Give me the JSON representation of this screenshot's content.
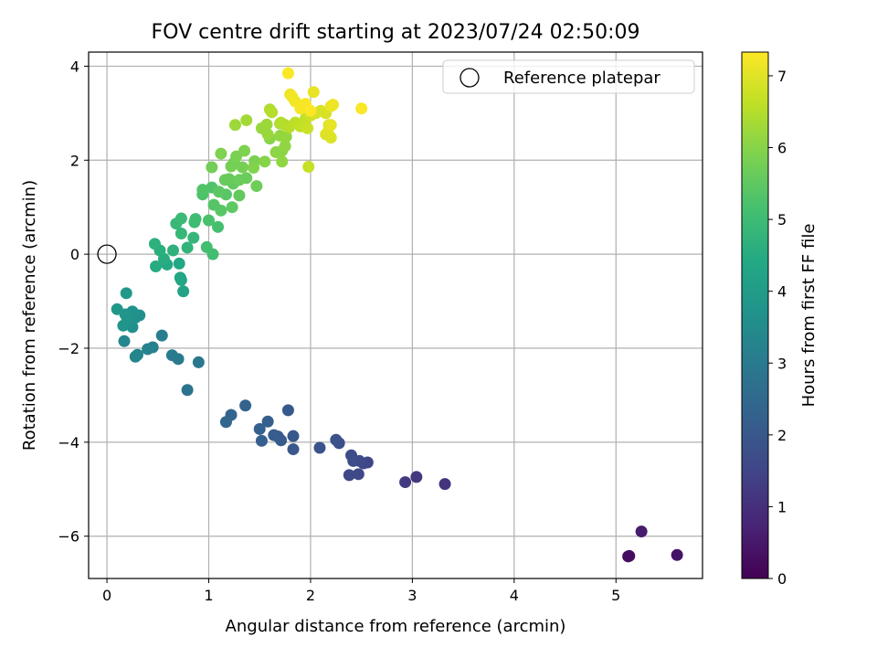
{
  "chart_data": {
    "type": "scatter",
    "title": "FOV centre drift starting at 2023/07/24 02:50:09",
    "xlabel": "Angular distance from reference (arcmin)",
    "ylabel": "Rotation from reference (arcmin)",
    "xlim": [
      -0.18,
      5.85
    ],
    "ylim": [
      -6.9,
      4.3
    ],
    "xticks": [
      0,
      1,
      2,
      3,
      4,
      5
    ],
    "yticks": [
      -6,
      -4,
      -2,
      0,
      2,
      4
    ],
    "grid": true,
    "legend": {
      "placement": "top-right",
      "entries": [
        "Reference platepar"
      ]
    },
    "reference_point": {
      "x": 0,
      "y": 0,
      "label": "Reference platepar"
    },
    "colorbar": {
      "label": "Hours from first FF file",
      "colormap": "viridis",
      "range": [
        0,
        7.33
      ],
      "ticks": [
        0,
        1,
        2,
        3,
        4,
        5,
        6,
        7
      ]
    },
    "series": [
      {
        "points": [
          [
            5.13,
            -6.42,
            0.2
          ],
          [
            5.12,
            -6.43,
            0.25
          ],
          [
            5.6,
            -6.4,
            0.4
          ],
          [
            5.25,
            -5.9,
            0.55
          ],
          [
            3.32,
            -4.89,
            1.1
          ],
          [
            3.04,
            -4.74,
            1.2
          ],
          [
            2.93,
            -4.85,
            1.25
          ],
          [
            2.56,
            -4.43,
            1.5
          ],
          [
            2.52,
            -4.45,
            1.55
          ],
          [
            2.47,
            -4.68,
            1.6
          ],
          [
            2.38,
            -4.7,
            1.6
          ],
          [
            2.48,
            -4.4,
            1.65
          ],
          [
            2.42,
            -4.4,
            1.7
          ],
          [
            2.4,
            -4.28,
            1.7
          ],
          [
            2.28,
            -4.02,
            1.8
          ],
          [
            2.25,
            -3.95,
            1.85
          ],
          [
            2.09,
            -4.12,
            1.9
          ],
          [
            1.83,
            -4.15,
            2.0
          ],
          [
            1.83,
            -3.87,
            2.0
          ],
          [
            1.78,
            -3.32,
            2.05
          ],
          [
            1.71,
            -3.96,
            2.1
          ],
          [
            1.68,
            -3.88,
            2.1
          ],
          [
            1.64,
            -3.85,
            2.15
          ],
          [
            1.58,
            -3.56,
            2.2
          ],
          [
            1.52,
            -3.97,
            2.2
          ],
          [
            1.5,
            -3.72,
            2.25
          ],
          [
            1.36,
            -3.22,
            2.3
          ],
          [
            1.22,
            -3.42,
            2.35
          ],
          [
            1.17,
            -3.57,
            2.4
          ],
          [
            0.79,
            -2.89,
            2.8
          ],
          [
            0.9,
            -2.3,
            2.9
          ],
          [
            0.7,
            -2.23,
            3.0
          ],
          [
            0.64,
            -2.15,
            3.05
          ],
          [
            0.54,
            -1.73,
            3.1
          ],
          [
            0.45,
            -1.98,
            3.2
          ],
          [
            0.4,
            -2.02,
            3.25
          ],
          [
            0.3,
            -2.14,
            3.3
          ],
          [
            0.28,
            -2.18,
            3.3
          ],
          [
            0.17,
            -1.85,
            3.35
          ],
          [
            0.32,
            -1.3,
            3.6
          ],
          [
            0.28,
            -1.35,
            3.6
          ],
          [
            0.25,
            -1.55,
            3.65
          ],
          [
            0.25,
            -1.22,
            3.7
          ],
          [
            0.22,
            -1.3,
            3.7
          ],
          [
            0.2,
            -1.38,
            3.75
          ],
          [
            0.18,
            -1.28,
            3.75
          ],
          [
            0.16,
            -1.52,
            3.8
          ],
          [
            0.1,
            -1.17,
            3.85
          ],
          [
            0.19,
            -0.83,
            3.9
          ],
          [
            0.75,
            -0.79,
            4.25
          ],
          [
            0.73,
            -0.55,
            4.3
          ],
          [
            0.72,
            -0.5,
            4.35
          ],
          [
            0.71,
            -0.2,
            4.4
          ],
          [
            0.59,
            -0.22,
            4.45
          ],
          [
            0.48,
            -0.26,
            4.5
          ],
          [
            0.56,
            -0.1,
            4.55
          ],
          [
            0.52,
            0.08,
            4.6
          ],
          [
            0.47,
            0.22,
            4.65
          ],
          [
            0.65,
            0.08,
            4.7
          ],
          [
            0.79,
            0.14,
            4.75
          ],
          [
            0.85,
            0.35,
            4.8
          ],
          [
            0.73,
            0.44,
            4.85
          ],
          [
            0.68,
            0.65,
            4.9
          ],
          [
            0.73,
            0.76,
            4.95
          ],
          [
            0.86,
            0.68,
            5.0
          ],
          [
            0.87,
            0.75,
            5.05
          ],
          [
            0.98,
            0.15,
            5.1
          ],
          [
            1.04,
            0.0,
            5.1
          ],
          [
            1.09,
            0.58,
            5.15
          ],
          [
            1.0,
            0.72,
            5.2
          ],
          [
            0.94,
            1.27,
            5.25
          ],
          [
            0.94,
            1.37,
            5.3
          ],
          [
            1.03,
            1.42,
            5.3
          ],
          [
            1.05,
            1.05,
            5.35
          ],
          [
            1.12,
            0.93,
            5.4
          ],
          [
            1.17,
            1.27,
            5.4
          ],
          [
            1.1,
            1.33,
            5.45
          ],
          [
            1.23,
            1.0,
            5.5
          ],
          [
            1.3,
            1.25,
            5.55
          ],
          [
            1.24,
            1.5,
            5.55
          ],
          [
            1.16,
            1.58,
            5.6
          ],
          [
            1.2,
            1.6,
            5.6
          ],
          [
            1.3,
            1.58,
            5.65
          ],
          [
            1.37,
            1.62,
            5.65
          ],
          [
            1.47,
            1.45,
            5.7
          ],
          [
            1.03,
            1.85,
            5.75
          ],
          [
            1.25,
            1.95,
            5.75
          ],
          [
            1.22,
            1.87,
            5.8
          ],
          [
            1.33,
            1.85,
            5.8
          ],
          [
            1.45,
            1.98,
            5.85
          ],
          [
            1.27,
            2.08,
            5.85
          ],
          [
            1.12,
            2.14,
            5.9
          ],
          [
            1.35,
            2.2,
            5.9
          ],
          [
            1.44,
            1.84,
            5.95
          ],
          [
            1.55,
            1.97,
            6.0
          ],
          [
            1.6,
            2.46,
            6.0
          ],
          [
            1.66,
            2.17,
            6.05
          ],
          [
            1.72,
            2.2,
            6.05
          ],
          [
            1.75,
            2.3,
            6.1
          ],
          [
            1.72,
            1.97,
            6.1
          ],
          [
            1.76,
            2.5,
            6.15
          ],
          [
            1.7,
            2.52,
            6.15
          ],
          [
            1.58,
            2.55,
            6.2
          ],
          [
            1.52,
            2.68,
            6.2
          ],
          [
            1.57,
            2.76,
            6.25
          ],
          [
            1.26,
            2.75,
            6.25
          ],
          [
            1.37,
            2.85,
            6.3
          ],
          [
            1.7,
            2.78,
            6.35
          ],
          [
            1.75,
            2.75,
            6.4
          ],
          [
            1.6,
            3.08,
            6.45
          ],
          [
            1.62,
            3.02,
            6.5
          ],
          [
            1.71,
            2.8,
            6.5
          ],
          [
            1.79,
            2.7,
            6.55
          ],
          [
            1.85,
            2.8,
            6.6
          ],
          [
            1.9,
            2.72,
            6.65
          ],
          [
            1.95,
            2.88,
            6.65
          ],
          [
            1.98,
            1.86,
            6.7
          ],
          [
            1.97,
            2.68,
            6.75
          ],
          [
            2.0,
            2.95,
            6.8
          ],
          [
            2.05,
            3.0,
            6.85
          ],
          [
            2.1,
            3.05,
            6.9
          ],
          [
            2.15,
            3.0,
            6.9
          ],
          [
            2.2,
            2.48,
            6.95
          ],
          [
            2.15,
            2.55,
            6.95
          ],
          [
            2.17,
            2.6,
            7.0
          ],
          [
            2.18,
            2.75,
            7.0
          ],
          [
            2.2,
            2.75,
            7.05
          ],
          [
            2.03,
            3.45,
            7.1
          ],
          [
            2.2,
            3.15,
            7.1
          ],
          [
            2.22,
            3.18,
            7.15
          ],
          [
            1.8,
            3.4,
            7.15
          ],
          [
            1.82,
            3.35,
            7.2
          ],
          [
            1.85,
            3.25,
            7.2
          ],
          [
            1.9,
            3.1,
            7.25
          ],
          [
            1.95,
            3.2,
            7.25
          ],
          [
            2.0,
            3.05,
            7.3
          ],
          [
            1.78,
            3.85,
            7.3
          ],
          [
            2.5,
            3.1,
            7.3
          ]
        ]
      }
    ]
  }
}
